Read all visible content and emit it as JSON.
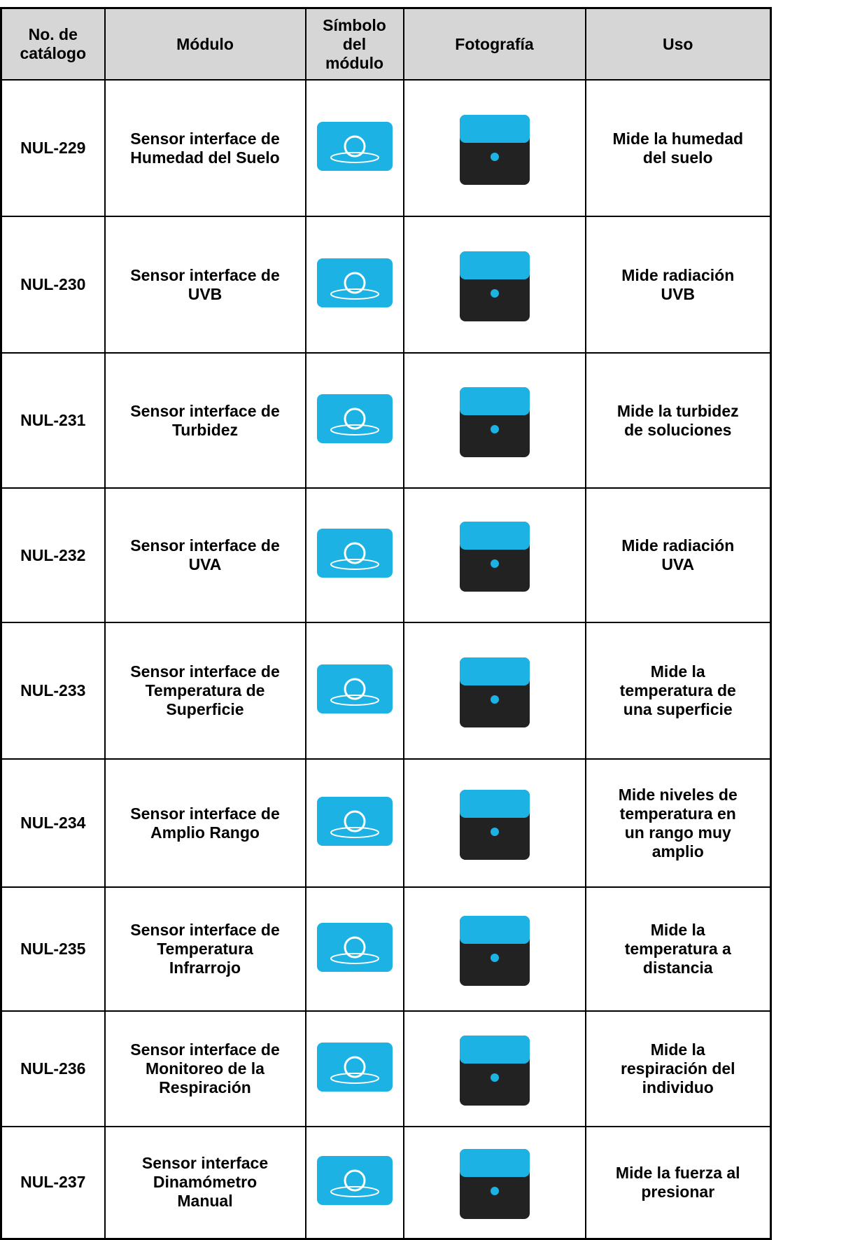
{
  "table": {
    "header": [
      [
        "No. de",
        "catálogo"
      ],
      [
        "Módulo"
      ],
      [
        "Símbolo",
        "del",
        "módulo"
      ],
      [
        "Fotografía"
      ],
      [
        "Uso"
      ]
    ],
    "rows": [
      {
        "catalog": "NUL-229",
        "module": [
          "Sensor interface de",
          "Humedad del Suelo"
        ],
        "use": [
          "Mide la humedad",
          "del suelo"
        ]
      },
      {
        "catalog": "NUL-230",
        "module": [
          "Sensor interface de",
          "UVB"
        ],
        "use": [
          "Mide radiación",
          "UVB"
        ]
      },
      {
        "catalog": "NUL-231",
        "module": [
          "Sensor interface de",
          "Turbidez"
        ],
        "use": [
          "Mide la turbidez",
          "de soluciones"
        ]
      },
      {
        "catalog": "NUL-232",
        "module": [
          "Sensor interface de",
          "UVA"
        ],
        "use": [
          "Mide radiación",
          "UVA"
        ]
      },
      {
        "catalog": "NUL-233",
        "module": [
          "Sensor interface de",
          "Temperatura de",
          "Superficie"
        ],
        "use": [
          "Mide la",
          "temperatura de",
          "una superficie"
        ]
      },
      {
        "catalog": "NUL-234",
        "module": [
          "Sensor interface de",
          "Amplio Rango"
        ],
        "use": [
          "Mide niveles de",
          "temperatura en",
          "un rango muy",
          "amplio"
        ]
      },
      {
        "catalog": "NUL-235",
        "module": [
          "Sensor interface de",
          "Temperatura",
          "Infrarrojo"
        ],
        "use": [
          "Mide la",
          "temperatura a",
          "distancia"
        ]
      },
      {
        "catalog": "NUL-236",
        "module": [
          "Sensor interface de",
          "Monitoreo de la",
          "Respiración"
        ],
        "use": [
          "Mide la",
          "respiración del",
          "individuo"
        ]
      },
      {
        "catalog": "NUL-237",
        "module": [
          "Sensor interface",
          "Dinamómetro",
          "Manual"
        ],
        "use": [
          "Mide la fuerza al",
          "presionar"
        ]
      }
    ]
  }
}
